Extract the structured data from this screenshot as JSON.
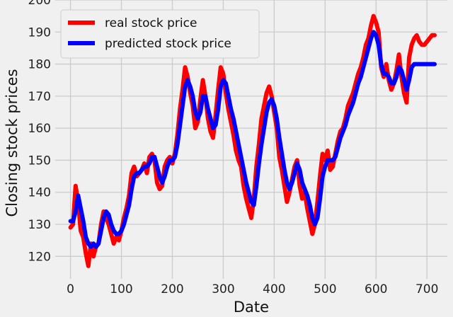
{
  "chart_data": {
    "type": "line",
    "title": "",
    "xlabel": "Date",
    "ylabel": "Closing stock prices",
    "xlim": [
      -30,
      740
    ],
    "ylim": [
      113,
      200
    ],
    "xticks": [
      0,
      100,
      200,
      300,
      400,
      500,
      600,
      700
    ],
    "yticks": [
      120,
      130,
      140,
      150,
      160,
      170,
      180,
      190,
      200
    ],
    "grid": true,
    "legend": "upper-left",
    "series": [
      {
        "name": "real stock price",
        "color": "#ff0000",
        "x": [
          0,
          5,
          10,
          15,
          20,
          25,
          30,
          35,
          40,
          45,
          50,
          55,
          60,
          65,
          70,
          75,
          80,
          85,
          90,
          95,
          100,
          105,
          110,
          115,
          120,
          125,
          130,
          135,
          140,
          145,
          150,
          155,
          160,
          165,
          170,
          175,
          180,
          185,
          190,
          195,
          200,
          205,
          210,
          215,
          220,
          225,
          230,
          235,
          240,
          245,
          250,
          255,
          260,
          265,
          270,
          275,
          280,
          285,
          290,
          295,
          300,
          305,
          310,
          315,
          320,
          325,
          330,
          335,
          340,
          345,
          350,
          355,
          360,
          365,
          370,
          375,
          380,
          385,
          390,
          395,
          400,
          405,
          410,
          415,
          420,
          425,
          430,
          435,
          440,
          445,
          450,
          455,
          460,
          465,
          470,
          475,
          480,
          485,
          490,
          495,
          500,
          505,
          510,
          515,
          520,
          525,
          530,
          535,
          540,
          545,
          550,
          555,
          560,
          565,
          570,
          575,
          580,
          585,
          590,
          595,
          600,
          605,
          610,
          615,
          620,
          625,
          630,
          635,
          640,
          645,
          650,
          655,
          660,
          665,
          670,
          675,
          680,
          685,
          690,
          695,
          700,
          705,
          710,
          715
        ],
        "values": [
          129,
          130,
          142,
          137,
          128,
          126,
          121,
          117,
          124,
          120,
          123,
          124,
          130,
          134,
          132,
          130,
          127,
          124,
          126,
          125,
          128,
          132,
          135,
          139,
          146,
          148,
          145,
          146,
          147,
          149,
          146,
          151,
          152,
          150,
          143,
          141,
          142,
          148,
          150,
          151,
          149,
          152,
          158,
          166,
          172,
          179,
          176,
          171,
          167,
          160,
          162,
          169,
          175,
          170,
          163,
          159,
          157,
          164,
          172,
          179,
          177,
          171,
          166,
          162,
          158,
          153,
          150,
          148,
          142,
          138,
          135,
          132,
          138,
          148,
          155,
          163,
          167,
          171,
          173,
          170,
          165,
          160,
          151,
          147,
          142,
          137,
          140,
          144,
          148,
          150,
          142,
          138,
          140,
          135,
          131,
          127,
          130,
          137,
          145,
          152,
          150,
          153,
          147,
          148,
          152,
          156,
          159,
          160,
          163,
          167,
          169,
          171,
          174,
          177,
          179,
          182,
          186,
          188,
          192,
          195,
          193,
          190,
          179,
          176,
          180,
          175,
          172,
          174,
          178,
          183,
          176,
          171,
          168,
          182,
          186,
          188,
          189,
          187,
          186,
          186,
          187,
          188,
          189,
          189
        ],
        "note_x": "indices"
      },
      {
        "name": "predicted stock price",
        "color": "#0000ff",
        "x": [
          0,
          5,
          10,
          15,
          20,
          25,
          30,
          35,
          40,
          45,
          50,
          55,
          60,
          65,
          70,
          75,
          80,
          85,
          90,
          95,
          100,
          105,
          110,
          115,
          120,
          125,
          130,
          135,
          140,
          145,
          150,
          155,
          160,
          165,
          170,
          175,
          180,
          185,
          190,
          195,
          200,
          205,
          210,
          215,
          220,
          225,
          230,
          235,
          240,
          245,
          250,
          255,
          260,
          265,
          270,
          275,
          280,
          285,
          290,
          295,
          300,
          305,
          310,
          315,
          320,
          325,
          330,
          335,
          340,
          345,
          350,
          355,
          360,
          365,
          370,
          375,
          380,
          385,
          390,
          395,
          400,
          405,
          410,
          415,
          420,
          425,
          430,
          435,
          440,
          445,
          450,
          455,
          460,
          465,
          470,
          475,
          480,
          485,
          490,
          495,
          500,
          505,
          510,
          515,
          520,
          525,
          530,
          535,
          540,
          545,
          550,
          555,
          560,
          565,
          570,
          575,
          580,
          585,
          590,
          595,
          600,
          605,
          610,
          615,
          620,
          625,
          630,
          635,
          640,
          645,
          650,
          655,
          660,
          665,
          670,
          675,
          680,
          685,
          690,
          695,
          700,
          705,
          710,
          715
        ],
        "values": [
          131,
          131,
          134,
          139,
          135,
          131,
          126,
          124,
          123,
          124,
          123,
          124,
          128,
          132,
          134,
          133,
          130,
          128,
          127,
          127,
          128,
          130,
          133,
          136,
          141,
          145,
          146,
          146,
          147,
          148,
          148,
          149,
          151,
          151,
          148,
          145,
          143,
          145,
          148,
          150,
          150,
          151,
          155,
          161,
          167,
          173,
          175,
          173,
          170,
          165,
          163,
          165,
          170,
          170,
          166,
          163,
          160,
          161,
          166,
          173,
          175,
          174,
          170,
          166,
          163,
          159,
          155,
          151,
          147,
          143,
          140,
          137,
          136,
          142,
          149,
          155,
          160,
          165,
          168,
          169,
          167,
          163,
          157,
          152,
          147,
          143,
          141,
          143,
          146,
          149,
          147,
          143,
          141,
          139,
          136,
          132,
          130,
          132,
          138,
          145,
          148,
          150,
          150,
          150,
          151,
          154,
          157,
          159,
          161,
          164,
          166,
          168,
          171,
          174,
          176,
          179,
          182,
          185,
          188,
          190,
          189,
          186,
          180,
          177,
          177,
          176,
          174,
          174,
          176,
          179,
          178,
          175,
          172,
          175,
          179,
          180,
          180,
          180,
          180,
          180,
          180,
          180,
          180,
          180
        ]
      }
    ]
  }
}
